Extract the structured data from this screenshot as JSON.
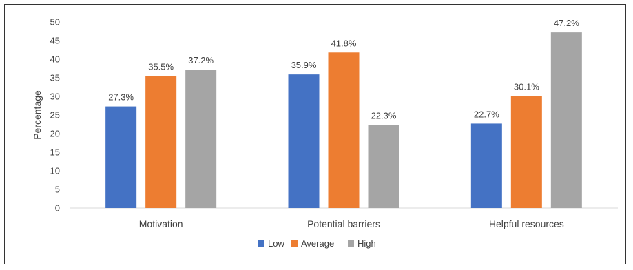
{
  "chart_data": {
    "type": "bar",
    "title": "",
    "xlabel": "",
    "ylabel": "Percentage",
    "ylim": [
      0,
      50
    ],
    "yticks": [
      0,
      5,
      10,
      15,
      20,
      25,
      30,
      35,
      40,
      45,
      50
    ],
    "grid": false,
    "legend_position": "bottom",
    "categories": [
      "Motivation",
      "Potential barriers",
      "Helpful resources"
    ],
    "series": [
      {
        "name": "Low",
        "color": "#4472C4",
        "values": [
          27.3,
          35.9,
          22.7
        ],
        "labels": [
          "27.3%",
          "35.9%",
          "22.7%"
        ]
      },
      {
        "name": "Average",
        "color": "#ED7D31",
        "values": [
          35.5,
          41.8,
          30.1
        ],
        "labels": [
          "35.5%",
          "41.8%",
          "30.1%"
        ]
      },
      {
        "name": "High",
        "color": "#A5A5A5",
        "values": [
          37.2,
          22.3,
          47.2
        ],
        "labels": [
          "37.2%",
          "22.3%",
          "47.2%"
        ]
      }
    ]
  }
}
